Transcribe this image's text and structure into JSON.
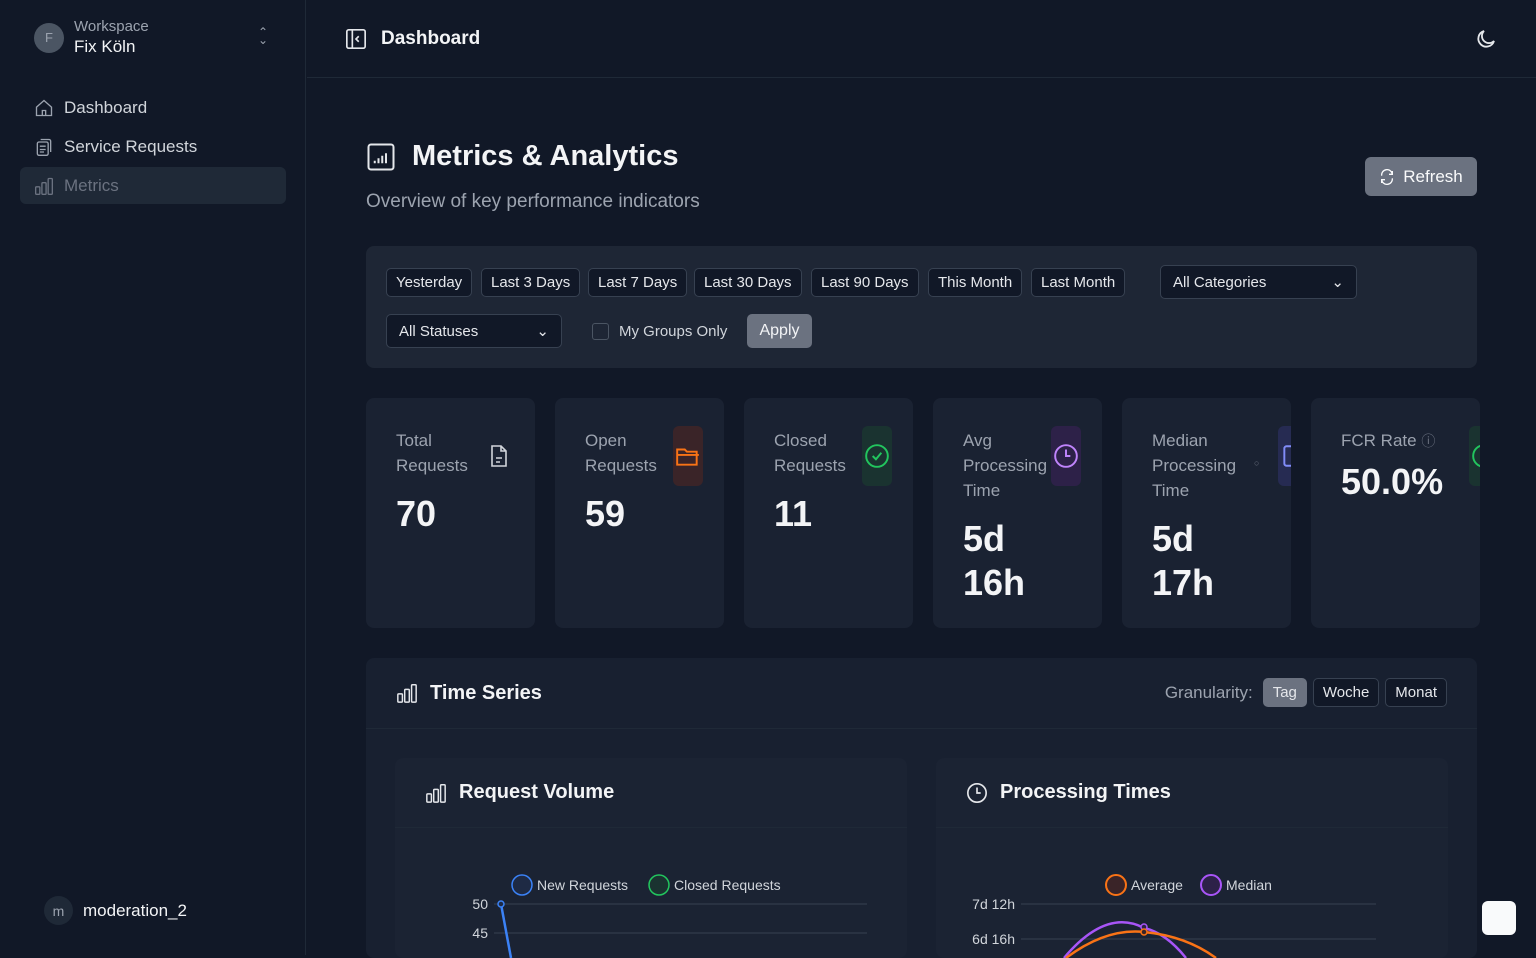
{
  "sidebar": {
    "workspace_label": "Workspace",
    "workspace_name": "Fix Köln",
    "avatar_letter": "F",
    "items": [
      {
        "label": "Dashboard",
        "icon": "home-icon"
      },
      {
        "label": "Service Requests",
        "icon": "clipboard-icon"
      },
      {
        "label": "Metrics",
        "icon": "bar-chart-icon",
        "active": true
      }
    ],
    "user": {
      "initial": "m",
      "name": "moderation_2"
    }
  },
  "header": {
    "title": "Dashboard"
  },
  "page": {
    "title": "Metrics & Analytics",
    "subtitle": "Overview of key performance indicators",
    "refresh": "Refresh"
  },
  "filters": {
    "ranges": [
      "Yesterday",
      "Last 3 Days",
      "Last 7 Days",
      "Last 30 Days",
      "Last 90 Days",
      "This Month",
      "Last Month"
    ],
    "category": "All Categories",
    "status": "All Statuses",
    "my_groups": "My Groups Only",
    "my_groups_checked": false,
    "apply": "Apply"
  },
  "kpis": [
    {
      "label": "Total Requests",
      "value": "70",
      "icon": "file-icon",
      "color": "#d1d5db"
    },
    {
      "label": "Open Requests",
      "value": "59",
      "icon": "folder-open-icon",
      "color": "#f97316"
    },
    {
      "label": "Closed Requests",
      "value": "11",
      "icon": "check-circle-icon",
      "color": "#22c55e"
    },
    {
      "label": "Avg Processing Time",
      "value": "5d 16h",
      "icon": "clock-icon",
      "color": "#c084fc"
    },
    {
      "label": "Median Processing Time",
      "value": "5d 17h",
      "icon": "calendar-icon",
      "color": "#818cf8"
    },
    {
      "label": "FCR Rate",
      "value": "50.0%",
      "icon": "check-circle-icon",
      "color": "#22c55e"
    }
  ],
  "timeseries": {
    "title": "Time Series",
    "granularity_label": "Granularity:",
    "options": [
      "Tag",
      "Woche",
      "Monat"
    ],
    "selected": "Tag"
  },
  "chart_data": [
    {
      "type": "line",
      "title": "Request Volume",
      "yticks": [
        "50",
        "45"
      ],
      "series": [
        {
          "name": "New Requests",
          "color": "#3b82f6",
          "values": [
            50
          ]
        },
        {
          "name": "Closed Requests",
          "color": "#22c55e",
          "values": []
        }
      ]
    },
    {
      "type": "line",
      "title": "Processing Times",
      "yticks": [
        "7d 12h",
        "6d 16h"
      ],
      "series": [
        {
          "name": "Average",
          "color": "#f97316"
        },
        {
          "name": "Median",
          "color": "#a855f7"
        }
      ]
    }
  ]
}
